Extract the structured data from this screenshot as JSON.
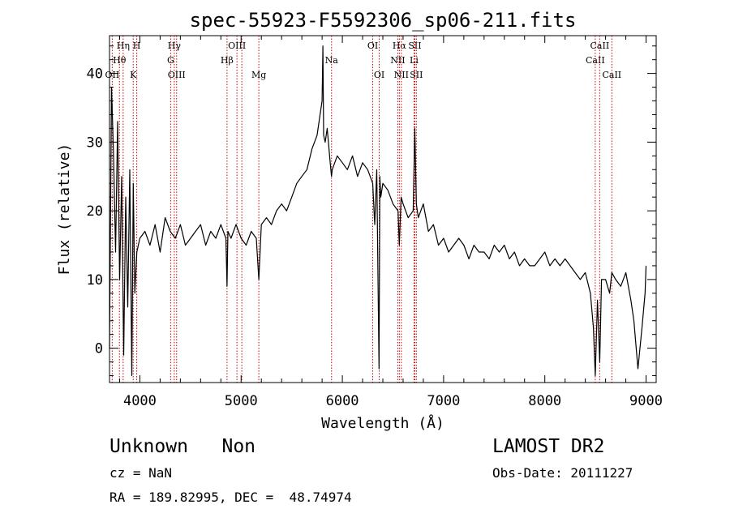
{
  "chart_data": {
    "type": "line",
    "title": "spec-55923-F5592306_sp06-211.fits",
    "xlabel": "Wavelength (Å)",
    "ylabel": "Flux (relative)",
    "xlim": [
      3700,
      9100
    ],
    "ylim": [
      -5,
      45.5
    ],
    "xticks": [
      4000,
      5000,
      6000,
      7000,
      8000,
      9000
    ],
    "yticks": [
      0,
      10,
      20,
      30,
      40
    ],
    "grid": false,
    "series": [
      {
        "line_color": "#000000",
        "x": [
          3700,
          3720,
          3740,
          3760,
          3780,
          3800,
          3820,
          3840,
          3860,
          3880,
          3900,
          3920,
          3935,
          3950,
          3970,
          4000,
          4050,
          4100,
          4150,
          4200,
          4250,
          4300,
          4350,
          4400,
          4450,
          4500,
          4550,
          4600,
          4650,
          4700,
          4750,
          4800,
          4850,
          4861,
          4870,
          4900,
          4950,
          5000,
          5050,
          5100,
          5150,
          5175,
          5200,
          5250,
          5300,
          5350,
          5400,
          5450,
          5500,
          5550,
          5600,
          5650,
          5700,
          5750,
          5780,
          5800,
          5808,
          5815,
          5830,
          5850,
          5880,
          5893,
          5900,
          5950,
          6000,
          6050,
          6100,
          6150,
          6200,
          6250,
          6300,
          6320,
          6340,
          6362,
          6370,
          6380,
          6400,
          6450,
          6500,
          6550,
          6563,
          6580,
          6600,
          6650,
          6700,
          6716,
          6731,
          6750,
          6800,
          6850,
          6900,
          6950,
          7000,
          7050,
          7100,
          7150,
          7200,
          7250,
          7300,
          7350,
          7400,
          7450,
          7500,
          7550,
          7600,
          7650,
          7700,
          7750,
          7800,
          7850,
          7900,
          7950,
          8000,
          8050,
          8100,
          8150,
          8200,
          8250,
          8300,
          8350,
          8400,
          8450,
          8480,
          8498,
          8520,
          8542,
          8560,
          8600,
          8640,
          8662,
          8700,
          8750,
          8800,
          8850,
          8880,
          8920,
          8960,
          8990,
          9000
        ],
        "y": [
          0,
          38,
          28,
          14,
          33,
          10,
          25,
          -1,
          22,
          6,
          26,
          -4,
          24,
          8,
          14,
          16,
          17,
          15,
          18,
          14,
          19,
          17,
          16,
          18,
          15,
          16,
          17,
          18,
          15,
          17,
          16,
          18,
          16,
          9,
          17,
          16,
          18,
          16,
          15,
          17,
          16,
          10,
          18,
          19,
          18,
          20,
          21,
          20,
          22,
          24,
          25,
          26,
          29,
          31,
          34,
          36,
          44,
          31,
          30,
          32,
          27,
          25,
          26,
          28,
          27,
          26,
          28,
          25,
          27,
          26,
          24,
          18,
          26,
          -3,
          25,
          22,
          24,
          23,
          21,
          20,
          15,
          22,
          21,
          19,
          20,
          32,
          21,
          19,
          21,
          17,
          18,
          15,
          16,
          14,
          15,
          16,
          15,
          13,
          15,
          14,
          14,
          13,
          15,
          14,
          15,
          13,
          14,
          12,
          13,
          12,
          12,
          13,
          14,
          12,
          13,
          12,
          13,
          12,
          11,
          10,
          11,
          8,
          3,
          -4,
          7,
          -2,
          10,
          10,
          8,
          11,
          10,
          9,
          11,
          7,
          4,
          -3,
          3,
          8,
          12
        ]
      }
    ],
    "line_markers": [
      {
        "name": "OII",
        "x": 3727,
        "row": 3
      },
      {
        "name": "Hθ",
        "x": 3798,
        "row": 2
      },
      {
        "name": "Hη",
        "x": 3835,
        "row": 1
      },
      {
        "name": "K",
        "x": 3934,
        "row": 3
      },
      {
        "name": "H",
        "x": 3969,
        "row": 0
      },
      {
        "name": "Hγ",
        "x": 4340,
        "row": 1
      },
      {
        "name": "G",
        "x": 4304,
        "row": 2
      },
      {
        "name": "OIII",
        "x": 4363,
        "row": 3
      },
      {
        "name": "Hβ",
        "x": 4861,
        "row": 2
      },
      {
        "name": "OIII",
        "x": 4959,
        "row": 1
      },
      {
        "name": "",
        "x": 5007,
        "row": 0
      },
      {
        "name": "Mg",
        "x": 5175,
        "row": 3
      },
      {
        "name": "Na",
        "x": 5893,
        "row": 2
      },
      {
        "name": "OI",
        "x": 6300,
        "row": 1
      },
      {
        "name": "OI",
        "x": 6364,
        "row": 3
      },
      {
        "name": "Hα",
        "x": 6563,
        "row": 1
      },
      {
        "name": "NII",
        "x": 6548,
        "row": 2
      },
      {
        "name": "NII",
        "x": 6583,
        "row": 3
      },
      {
        "name": "SII",
        "x": 6716,
        "row": 1
      },
      {
        "name": "Li",
        "x": 6708,
        "row": 2
      },
      {
        "name": "SII",
        "x": 6731,
        "row": 3
      },
      {
        "name": "CaII",
        "x": 8498,
        "row": 2
      },
      {
        "name": "CaII",
        "x": 8542,
        "row": 1
      },
      {
        "name": "CaII",
        "x": 8662,
        "row": 3
      }
    ],
    "marker_color": "#cc0000"
  },
  "info": {
    "class_text": "Unknown   Non",
    "survey": "LAMOST DR2",
    "cz": "cz = NaN",
    "obs_date": "Obs-Date: 20111227",
    "radec": "RA = 189.82995, DEC =  48.74974"
  }
}
